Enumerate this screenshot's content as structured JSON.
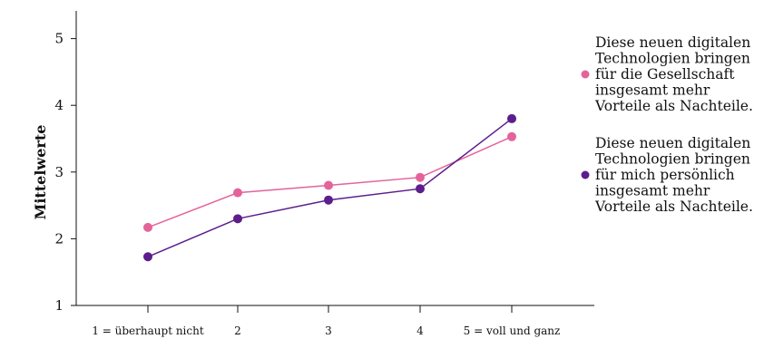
{
  "chart_data": {
    "type": "line",
    "title": "",
    "xlabel": "",
    "ylabel": "Mittelwerte",
    "categories": [
      "1 = überhaupt nicht",
      "2",
      "3",
      "4",
      "5 = voll und ganz"
    ],
    "yticks": [
      "1",
      "2",
      "3",
      "4",
      "5"
    ],
    "ylim": [
      1,
      5.4
    ],
    "grid": false,
    "legend_position": "right",
    "series": [
      {
        "name": "Diese neuen digitalen Technologien bringen für die Gesellschaft insgesamt mehr Vorteile als Nachteile.",
        "legend_lines": [
          "Diese neuen digitalen",
          "Technologien bringen",
          "für die Gesellschaft",
          "insgesamt mehr",
          "Vorteile als Nachteile."
        ],
        "color": "#E4639A",
        "values": [
          2.17,
          2.69,
          2.8,
          2.92,
          3.53
        ]
      },
      {
        "name": "Diese neuen digitalen Technologien bringen für mich persönlich insgesamt mehr Vorteile als Nachteile.",
        "legend_lines": [
          "Diese neuen digitalen",
          "Technologien bringen",
          "für mich persönlich",
          "insgesamt mehr",
          "Vorteile als Nachteile."
        ],
        "color": "#5C1E8C",
        "values": [
          1.73,
          2.3,
          2.58,
          2.75,
          3.8
        ]
      }
    ]
  }
}
